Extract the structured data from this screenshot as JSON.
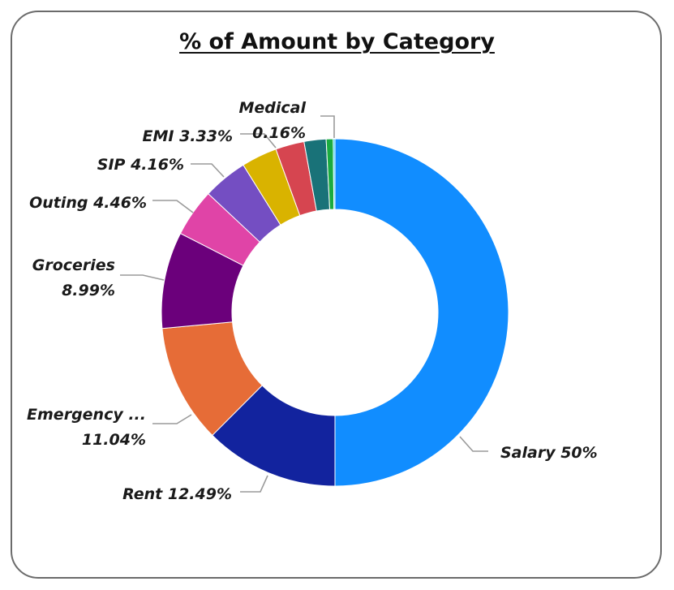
{
  "chart_data": {
    "type": "pie",
    "donut": true,
    "title": "% of Amount by Category",
    "slices": [
      {
        "name": "Salary",
        "label": "Salary 50%",
        "value": 50.0,
        "color": "#118DFF"
      },
      {
        "name": "Rent",
        "label": "Rent 12.49%",
        "value": 12.49,
        "color": "#12239E"
      },
      {
        "name": "Emergency ...",
        "label_line1": "Emergency ...",
        "label_line2": "11.04%",
        "value": 11.04,
        "color": "#E66C37"
      },
      {
        "name": "Groceries",
        "label_line1": "Groceries",
        "label_line2": "8.99%",
        "value": 8.99,
        "color": "#6B007B"
      },
      {
        "name": "Outing",
        "label": "Outing 4.46%",
        "value": 4.46,
        "color": "#E044A7"
      },
      {
        "name": "SIP",
        "label": "SIP 4.16%",
        "value": 4.16,
        "color": "#744EC2"
      },
      {
        "name": "EMI",
        "label": "EMI 3.33%",
        "value": 3.33,
        "color": "#D9B300"
      },
      {
        "value": 2.67,
        "color": "#D64550"
      },
      {
        "value": 2.05,
        "color": "#197278"
      },
      {
        "value": 0.65,
        "color": "#1AAB40"
      },
      {
        "name": "Medical",
        "label_line1": "Medical",
        "label_line2": "0.16%",
        "value": 0.16,
        "color": "#15C6F4"
      }
    ]
  }
}
